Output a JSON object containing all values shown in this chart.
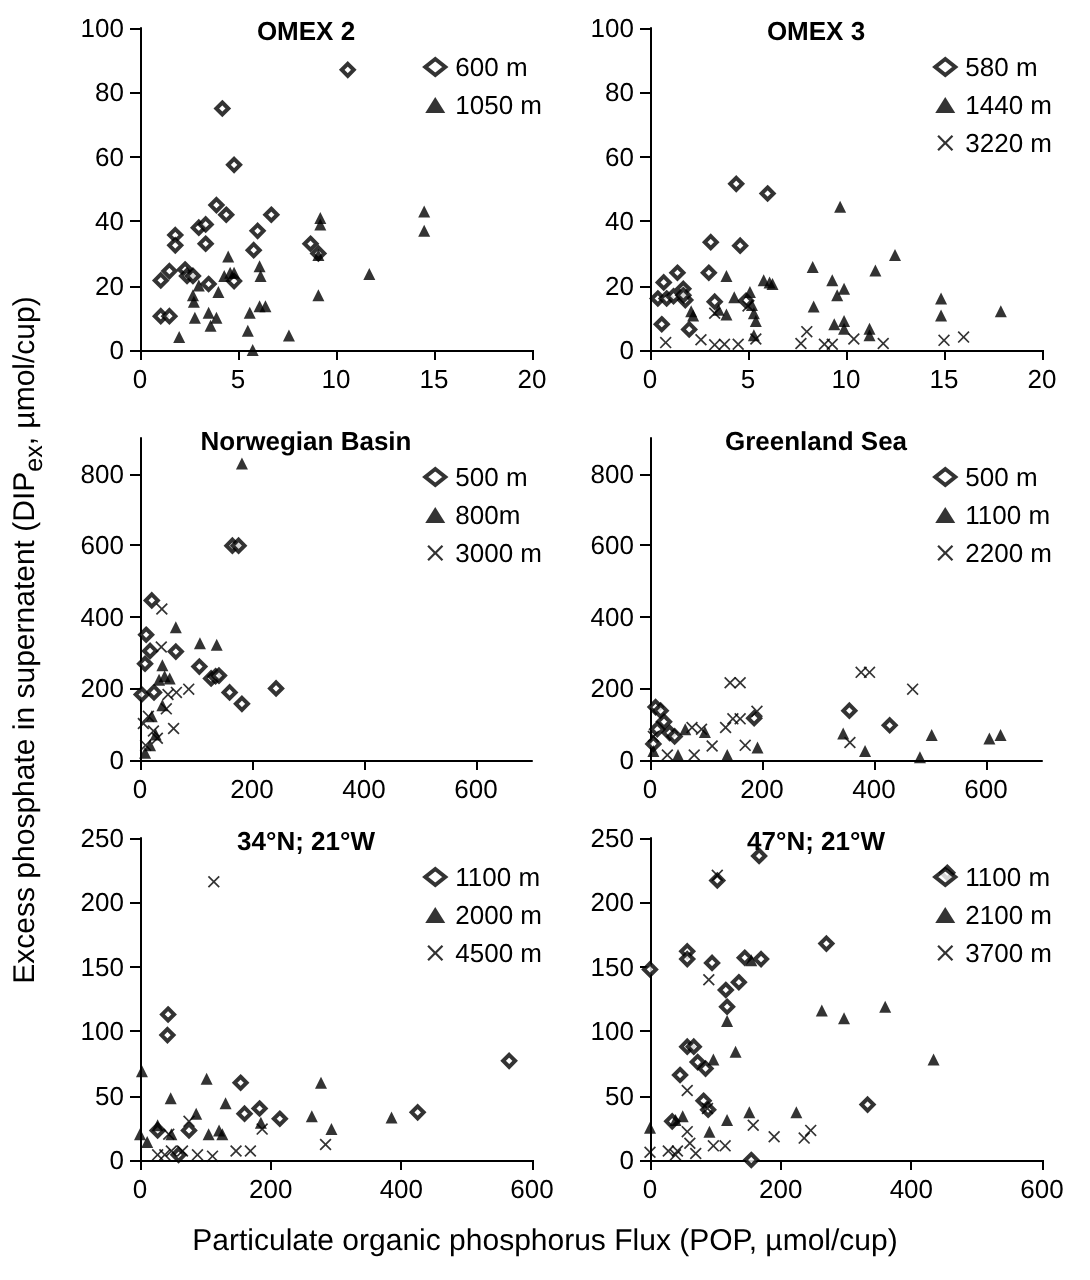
{
  "chart_data": [
    {
      "type": "scatter",
      "title": "OMEX 2",
      "xlim": [
        0,
        20
      ],
      "xticks": [
        0,
        5,
        10,
        15,
        20
      ],
      "ylim": [
        0,
        100
      ],
      "yticks": [
        0,
        20,
        40,
        60,
        80,
        100
      ],
      "grid": false,
      "legend": "top right",
      "series": [
        {
          "name": "600 m",
          "color": "#000000",
          "marker": "diamond",
          "x": [
            1.06,
            1.5,
            1.06,
            1.5,
            1.8,
            1.8,
            2.3,
            2.4,
            2.7,
            3.0,
            3.35,
            3.35,
            3.5,
            3.9,
            4.2,
            4.4,
            4.8,
            4.8,
            6.0,
            5.8,
            6.7,
            8.7,
            8.9,
            10.6,
            9.1
          ],
          "values": [
            10.5,
            10.5,
            21.6,
            24.5,
            35.7,
            32.5,
            25,
            23,
            23,
            38,
            39,
            33,
            20.5,
            45,
            75,
            42,
            57.5,
            21.4,
            37,
            31,
            42,
            33,
            null,
            87,
            30
          ]
        },
        {
          "name": "1050 m",
          "color": "#000000",
          "marker": "triangle",
          "x": [
            2.0,
            2.7,
            2.75,
            2.8,
            3.0,
            3.5,
            3.6,
            3.9,
            4.0,
            4.3,
            4.5,
            4.6,
            4.8,
            5.4,
            5.5,
            5.6,
            5.75,
            6.1,
            6.15,
            6.1,
            6.4,
            7.6,
            9.1,
            9.1,
            9.2,
            9.2,
            11.7,
            14.5,
            14.5
          ],
          "values": [
            4,
            17,
            15,
            10,
            20,
            11.6,
            7.5,
            10,
            18,
            23,
            29,
            24,
            24,
            null,
            6,
            11.6,
            0,
            26,
            23,
            13.6,
            13.6,
            4.5,
            29.5,
            17,
            41,
            39,
            23.6,
            43,
            37
          ]
        }
      ]
    },
    {
      "type": "scatter",
      "title": "OMEX 3",
      "xlim": [
        0,
        20
      ],
      "xticks": [
        0,
        5,
        10,
        15,
        20
      ],
      "ylim": [
        0,
        100
      ],
      "yticks": [
        0,
        20,
        40,
        60,
        80,
        100
      ],
      "grid": false,
      "legend": "top right",
      "series": [
        {
          "name": "580 m",
          "color": "#000000",
          "marker": "diamond",
          "x": [
            0.4,
            0.6,
            0.7,
            0.85,
            1.2,
            1.4,
            1.7,
            1.8,
            1.7,
            2.0,
            3.0,
            3.1,
            3.3,
            4.4,
            4.6,
            4.9,
            6.0
          ],
          "values": [
            16,
            8,
            21,
            16,
            16.7,
            24,
            19,
            15.5,
            17,
            6.4,
            24,
            33.5,
            15,
            51.6,
            32.4,
            15.3,
            48.6
          ]
        },
        {
          "name": "1440 m",
          "color": "#000000",
          "marker": "triangle",
          "x": [
            2.1,
            2.2,
            3.5,
            3.9,
            3.9,
            4.3,
            5.1,
            5.2,
            5.3,
            5.4,
            5.3,
            5.8,
            6.1,
            6.25,
            8.3,
            8.35,
            9.3,
            9.55,
            9.9,
            9.7,
            9.4,
            9.9,
            9.9,
            11.2,
            11.2,
            11.5,
            12.5,
            14.85,
            14.85,
            17.9
          ],
          "values": [
            12,
            10.7,
            12.5,
            23,
            11,
            16.4,
            18,
            14,
            11.4,
            9,
            4.6,
            21.7,
            21,
            20.5,
            25.8,
            13.5,
            21.7,
            17,
            19,
            44.5,
            8,
            9,
            6.6,
            6.6,
            4.6,
            24.7,
            29.5,
            16,
            10.7,
            12
          ]
        },
        {
          "name": "3220 m",
          "color": "#000000",
          "marker": "cross",
          "x": [
            0.8,
            2.6,
            3.3,
            3.8,
            4.5,
            5.4,
            7.7,
            8.0,
            8.9,
            9.3,
            10.4,
            11.9,
            15.0,
            16.0,
            3.3,
            5.0
          ],
          "values": [
            2.3,
            3.2,
            1.6,
            1.8,
            1.8,
            3.4,
            2,
            5.7,
            1.8,
            1.8,
            3.4,
            2,
            3,
            4,
            11.4,
            13.7
          ]
        }
      ]
    },
    {
      "type": "scatter",
      "title": "Norwegian Basin",
      "ylabel": "Excess phosphate in supernatent (DIP$_{ex}$, µmol/cup)",
      "xlim": [
        0,
        700
      ],
      "xticks": [
        0,
        200,
        400,
        600
      ],
      "ylim": [
        0,
        900
      ],
      "yticks": [
        0,
        200,
        400,
        600,
        800
      ],
      "grid": false,
      "legend": "top right",
      "series": [
        {
          "name": "500 m",
          "color": "#000000",
          "marker": "diamond",
          "x": [
            9,
            11,
            18,
            21,
            25,
            64,
            106,
            127,
            135,
            141,
            160,
            165,
            176,
            182,
            243,
            3
          ],
          "values": [
            269,
            350,
            305,
            446,
            189,
            303,
            261,
            228,
            234,
            236,
            189,
            599,
            599,
            157,
            200,
            183
          ]
        },
        {
          "name": "800m",
          "color": "#000000",
          "marker": "triangle",
          "x": [
            182,
            107,
            137,
            64,
            40,
            44,
            53,
            21,
            28,
            40,
            18,
            34,
            9
          ],
          "values": [
            829,
            326,
            322,
            371,
            265,
            234,
            228,
            122,
            71,
            153,
            41,
            224,
            20
          ]
        },
        {
          "name": "3000 m",
          "color": "#000000",
          "marker": "cross",
          "x": [
            39,
            38,
            65,
            87,
            6,
            15,
            24,
            47,
            60,
            10,
            31,
            50
          ],
          "values": [
            422,
            316,
            189,
            198,
            102,
            122,
            81,
            143,
            88,
            41,
            61,
            183
          ]
        }
      ]
    },
    {
      "type": "scatter",
      "title": "Greenland Sea",
      "xlim": [
        0,
        700
      ],
      "xticks": [
        0,
        200,
        400,
        600
      ],
      "ylim": [
        0,
        900
      ],
      "yticks": [
        0,
        200,
        400,
        600,
        800
      ],
      "grid": false,
      "legend": "top right",
      "series": [
        {
          "name": "500 m",
          "color": "#000000",
          "marker": "diamond",
          "x": [
            10,
            19,
            25,
            35,
            44,
            186,
            356,
            428,
            6,
            13
          ],
          "values": [
            148,
            138,
            107,
            76,
            66,
            117,
            138,
            97,
            45,
            86
          ]
        },
        {
          "name": "1100 m",
          "color": "#000000",
          "marker": "triangle",
          "x": [
            63,
            98,
            192,
            345,
            384,
            482,
            503,
            606,
            626,
            6,
            50,
            138
          ],
          "values": [
            86,
            78,
            35,
            74,
            25,
            8,
            70,
            60,
            70,
            25,
            14,
            14
          ]
        },
        {
          "name": "2200 m",
          "color": "#000000",
          "marker": "cross",
          "x": [
            143,
            161,
            135,
            148,
            161,
            191,
            377,
            392,
            469,
            357,
            75,
            92,
            111,
            170,
            31,
            79,
            6
          ],
          "values": [
            216,
            216,
            91,
            115,
            115,
            136,
            245,
            245,
            198,
            49,
            91,
            86,
            39,
            41,
            14,
            14,
            66
          ]
        }
      ]
    },
    {
      "type": "scatter",
      "title": "34°N; 21°W",
      "xlabel": "Particulate organic phosphorus Flux (POP, µmol/cup)",
      "xlim": [
        0,
        600
      ],
      "xticks": [
        0,
        200,
        400,
        600
      ],
      "ylim": [
        0,
        250
      ],
      "yticks": [
        0,
        50,
        100,
        150,
        200,
        250
      ],
      "grid": false,
      "legend": "top right",
      "series": [
        {
          "name": "1100 m",
          "color": "#000000",
          "marker": "diamond",
          "x": [
            43,
            42,
            154,
            160,
            183,
            214,
            425,
            565,
            75,
            27,
            59
          ],
          "values": [
            113,
            97,
            60,
            36,
            40,
            32,
            37,
            77,
            23,
            23,
            4
          ]
        },
        {
          "name": "2000 m",
          "color": "#000000",
          "marker": "triangle",
          "x": [
            0,
            3,
            11,
            27,
            47,
            48,
            86,
            102,
            105,
            121,
            126,
            131,
            185,
            263,
            277,
            293,
            385
          ],
          "values": [
            20,
            69,
            14,
            27,
            48,
            20,
            36,
            63,
            20,
            23,
            20,
            44,
            29,
            34,
            60,
            24,
            33
          ]
        },
        {
          "name": "4500 m",
          "color": "#000000",
          "marker": "cross",
          "x": [
            113,
            75,
            27,
            38,
            48,
            65,
            88,
            111,
            147,
            169,
            187,
            284,
            44
          ],
          "values": [
            216,
            30,
            4,
            4,
            7,
            7,
            4,
            3,
            7,
            7,
            24,
            12,
            20
          ]
        }
      ]
    },
    {
      "type": "scatter",
      "title": "47°N; 21°W",
      "xlim": [
        0,
        600
      ],
      "xticks": [
        0,
        200,
        400,
        600
      ],
      "ylim": [
        0,
        250
      ],
      "yticks": [
        0,
        50,
        100,
        150,
        200,
        250
      ],
      "grid": false,
      "legend": "top right",
      "series": [
        {
          "name": "1100 m",
          "color": "#000000",
          "marker": "diamond",
          "x": [
            0,
            57,
            57,
            95,
            145,
            170,
            136,
            116,
            118,
            57,
            67,
            73,
            85,
            46,
            82,
            89,
            34,
            155,
            167,
            103,
            270,
            455,
            333
          ],
          "values": [
            148,
            162,
            156,
            153,
            157,
            156,
            138,
            132,
            119,
            88,
            88,
            76,
            71,
            66,
            46,
            39,
            30,
            0,
            236,
            217,
            168,
            223,
            43
          ]
        },
        {
          "name": "2100 m",
          "color": "#000000",
          "marker": "triangle",
          "x": [
            0,
            50,
            39,
            97,
            118,
            131,
            118,
            152,
            155,
            224,
            263,
            297,
            360,
            434,
            91
          ],
          "values": [
            25,
            34,
            31,
            78,
            108,
            84,
            31,
            37,
            155,
            37,
            116,
            110,
            119,
            78,
            22
          ]
        },
        {
          "name": "3700 m",
          "color": "#000000",
          "marker": "cross",
          "x": [
            103,
            90,
            57,
            88,
            0,
            28,
            42,
            61,
            57,
            70,
            97,
            115,
            158,
            190,
            236,
            246,
            39
          ],
          "values": [
            221,
            140,
            54,
            40,
            6,
            7,
            7,
            13,
            22,
            5,
            11,
            11,
            27,
            18,
            17,
            23,
            4
          ]
        }
      ]
    }
  ]
}
